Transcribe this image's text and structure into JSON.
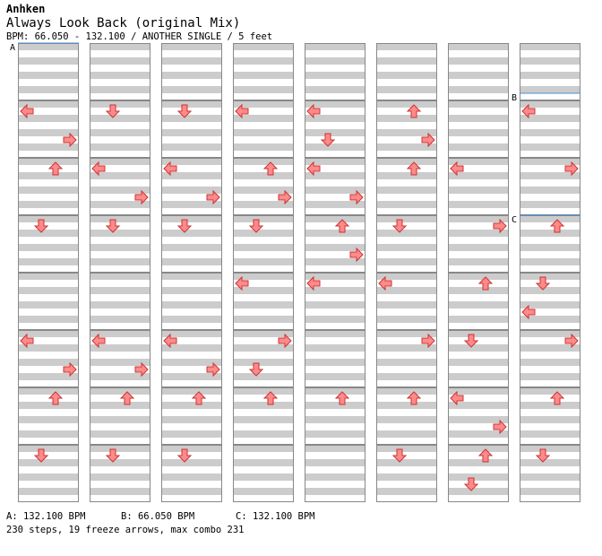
{
  "header": {
    "artist": "Anhken",
    "title": "Always Look Back (original Mix)",
    "bpm_line": "BPM: 66.050 - 132.100 / ANOTHER SINGLE / 5 feet"
  },
  "markers": [
    {
      "label": "A",
      "column": 0,
      "measure": 0,
      "bpm": "132.100"
    },
    {
      "label": "B",
      "column": 7,
      "measure": 0.875,
      "bpm": "66.050"
    },
    {
      "label": "C",
      "column": 7,
      "measure": 3,
      "bpm": "132.100"
    }
  ],
  "legend": {
    "a": "A: 132.100 BPM",
    "b": "B: 66.050 BPM",
    "c": "C: 132.100 BPM"
  },
  "summary": "230 steps, 19 freeze arrows, max combo 231",
  "columns": 8,
  "measures_per_column": 8,
  "colors": {
    "quarter": "#ff8a8a",
    "eighth": "#78b4ff",
    "sixteenth": "#f49cf4",
    "freeze": "#b8f0b8",
    "stripe": "#cccccc",
    "marker_line": "#4a8fd8"
  },
  "notes": [
    [
      0,
      1,
      "L"
    ],
    [
      0,
      1.5,
      "R"
    ],
    [
      0,
      2,
      "U"
    ],
    [
      0,
      3,
      "D"
    ],
    [
      0,
      5,
      "L"
    ],
    [
      0,
      5.5,
      "R"
    ],
    [
      0,
      6,
      "U"
    ],
    [
      0,
      7,
      "D"
    ],
    [
      1,
      1,
      "D"
    ],
    [
      1,
      2,
      "L"
    ],
    [
      1,
      2.5,
      "R"
    ],
    [
      1,
      3,
      "D"
    ],
    [
      1,
      5,
      "L"
    ],
    [
      1,
      5.5,
      "R"
    ],
    [
      1,
      6,
      "U"
    ],
    [
      1,
      7,
      "D"
    ],
    [
      2,
      1,
      "D"
    ],
    [
      2,
      2,
      "L"
    ],
    [
      2,
      2.5,
      "R"
    ],
    [
      2,
      3,
      "D"
    ],
    [
      2,
      5,
      "L"
    ],
    [
      2,
      5.5,
      "R"
    ],
    [
      2,
      6,
      "U"
    ],
    [
      2,
      7,
      "D"
    ],
    [
      3,
      1,
      "L"
    ],
    [
      3,
      2,
      "U"
    ],
    [
      3,
      2.5,
      "R"
    ],
    [
      3,
      3,
      "D"
    ],
    [
      3,
      4,
      "L"
    ],
    [
      3,
      5,
      "R"
    ],
    [
      3,
      5.5,
      "D"
    ],
    [
      3,
      6,
      "U"
    ],
    [
      4,
      1,
      "L"
    ],
    [
      4,
      1.5,
      "D"
    ],
    [
      4,
      2,
      "L"
    ],
    [
      4,
      2.5,
      "R"
    ],
    [
      4,
      3,
      "U"
    ],
    [
      4,
      3.5,
      "R"
    ],
    [
      4,
      4,
      "L"
    ],
    [
      4,
      6,
      "U"
    ],
    [
      5,
      1,
      "U"
    ],
    [
      5,
      1.5,
      "R"
    ],
    [
      5,
      2,
      "U"
    ],
    [
      5,
      3,
      "D"
    ],
    [
      5,
      4,
      "L"
    ],
    [
      5,
      5,
      "R"
    ],
    [
      5,
      6,
      "U"
    ],
    [
      5,
      7,
      "D"
    ],
    [
      6,
      2,
      "L"
    ],
    [
      6,
      3,
      "R"
    ],
    [
      6,
      4,
      "U"
    ],
    [
      6,
      5,
      "D"
    ],
    [
      6,
      6,
      "L"
    ],
    [
      6,
      6.5,
      "R"
    ],
    [
      6,
      7,
      "U"
    ],
    [
      6,
      7.5,
      "D"
    ],
    [
      7,
      1,
      "L"
    ],
    [
      7,
      2,
      "R"
    ],
    [
      7,
      3,
      "U"
    ],
    [
      7,
      4,
      "D"
    ],
    [
      7,
      4.5,
      "L"
    ],
    [
      7,
      5,
      "R"
    ],
    [
      7,
      6,
      "U"
    ],
    [
      7,
      7,
      "D"
    ]
  ]
}
